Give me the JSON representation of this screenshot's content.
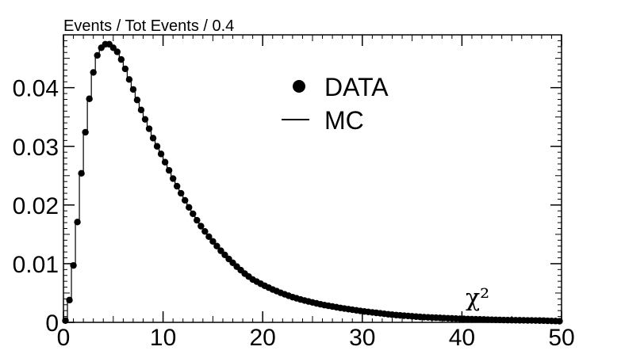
{
  "chart_data": {
    "type": "scatter",
    "title": "",
    "ylabel": "Events / Tot Events / 0.4",
    "xlabel": "χ²",
    "xlim": [
      0,
      50
    ],
    "ylim": [
      0,
      0.049
    ],
    "bin_width": 0.4,
    "x_ticks": [
      0,
      10,
      20,
      30,
      40,
      50
    ],
    "x_tick_labels": [
      "0",
      "10",
      "20",
      "30",
      "40",
      "50"
    ],
    "y_ticks": [
      0,
      0.01,
      0.02,
      0.03,
      0.04
    ],
    "y_tick_labels": [
      "0",
      "0.01",
      "0.02",
      "0.03",
      "0.04"
    ],
    "legend": {
      "position": "top-center",
      "entries": [
        "DATA",
        "MC"
      ]
    },
    "series": [
      {
        "name": "DATA",
        "marker": "circle",
        "color": "#000000",
        "anchors": [
          [
            0.2,
            0.0003
          ],
          [
            0.6,
            0.0038
          ],
          [
            1.0,
            0.0097
          ],
          [
            1.4,
            0.0171
          ],
          [
            1.8,
            0.0254
          ],
          [
            2.2,
            0.0324
          ],
          [
            2.6,
            0.0381
          ],
          [
            3.0,
            0.0426
          ],
          [
            3.4,
            0.0455
          ],
          [
            3.8,
            0.0468
          ],
          [
            4.2,
            0.0474
          ],
          [
            4.6,
            0.0474
          ],
          [
            5.0,
            0.0468
          ],
          [
            5.4,
            0.0461
          ],
          [
            5.8,
            0.0448
          ],
          [
            6.2,
            0.0432
          ],
          [
            6.6,
            0.0414
          ],
          [
            7.0,
            0.0397
          ],
          [
            7.4,
            0.0379
          ],
          [
            7.8,
            0.0362
          ],
          [
            8.2,
            0.0346
          ],
          [
            8.6,
            0.033
          ],
          [
            9.0,
            0.0314
          ],
          [
            9.4,
            0.03
          ],
          [
            9.8,
            0.0287
          ],
          [
            10.2,
            0.0273
          ],
          [
            10.6,
            0.0259
          ],
          [
            11.0,
            0.0245
          ],
          [
            11.4,
            0.0232
          ],
          [
            11.8,
            0.022
          ],
          [
            12.2,
            0.0208
          ],
          [
            12.6,
            0.0196
          ],
          [
            13.0,
            0.0185
          ],
          [
            13.4,
            0.0174
          ],
          [
            13.8,
            0.0164
          ],
          [
            14.2,
            0.0155
          ],
          [
            14.6,
            0.0146
          ],
          [
            15.0,
            0.0138
          ],
          [
            15.8,
            0.0122
          ],
          [
            16.6,
            0.0108
          ],
          [
            17.4,
            0.0095
          ],
          [
            18.2,
            0.0083
          ],
          [
            19.0,
            0.0073
          ],
          [
            20.0,
            0.0064
          ],
          [
            21.0,
            0.0056
          ],
          [
            22.0,
            0.0049
          ],
          [
            23.0,
            0.0043
          ],
          [
            24.0,
            0.0038
          ],
          [
            26.0,
            0.003
          ],
          [
            28.0,
            0.0024
          ],
          [
            30.0,
            0.0019
          ],
          [
            33.0,
            0.0013
          ],
          [
            36.0,
            0.0009
          ],
          [
            40.0,
            0.0006
          ],
          [
            44.0,
            0.0004
          ],
          [
            48.0,
            0.0003
          ],
          [
            49.8,
            0.0002
          ]
        ]
      },
      {
        "name": "MC",
        "style": "step-line",
        "color": "#000000"
      }
    ]
  }
}
